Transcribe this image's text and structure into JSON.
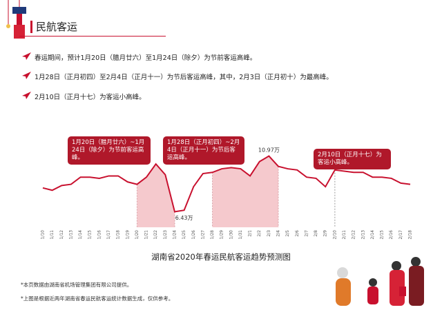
{
  "header": {
    "title": "民航客运"
  },
  "bullets": [
    "春运期间，预计1月20日（腊月廿六）至1月24日（除夕）为节前客运高峰。",
    "1月28日（正月初四）至2月4日（正月十一）为节后客运高峰，其中，2月3日（正月初十）为最高峰。",
    "2月10日（正月十七）为客运小高峰。"
  ],
  "callouts": {
    "pre_peak": "1月20日（腊月廿六）~1月24日（除夕）为节前客运高峰。",
    "post_peak": "1月28日（正月初四）~2月4日（正月十一）为节后客运高峰。",
    "small_peak": "2月10日（正月十七）为客运小高峰。"
  },
  "chart_data": {
    "type": "line",
    "title": "湖南省2020年春运民航客运趋势预测图",
    "x": [
      "1/10",
      "1/11",
      "1/12",
      "1/13",
      "1/14",
      "1/15",
      "1/16",
      "1/17",
      "1/18",
      "1/19",
      "1/20",
      "1/21",
      "1/22",
      "1/23",
      "1/24",
      "1/25",
      "1/26",
      "1/27",
      "1/28",
      "1/29",
      "1/30",
      "1/31",
      "2/1",
      "2/2",
      "2/3",
      "2/4",
      "2/5",
      "2/6",
      "2/7",
      "2/8",
      "2/9",
      "2/10",
      "2/11",
      "2/12",
      "2/13",
      "2/14",
      "2/15",
      "2/16",
      "2/17",
      "2/18"
    ],
    "values": [
      8.3,
      8.1,
      8.5,
      8.6,
      9.2,
      9.2,
      9.1,
      9.3,
      9.3,
      8.8,
      8.6,
      9.2,
      10.3,
      9.4,
      6.3,
      6.43,
      8.4,
      9.5,
      9.6,
      9.9,
      10.0,
      9.9,
      9.3,
      10.5,
      10.97,
      10.1,
      9.9,
      9.8,
      9.2,
      9.1,
      8.4,
      9.8,
      9.7,
      9.6,
      9.6,
      9.2,
      9.2,
      9.1,
      8.7,
      8.6
    ],
    "annotations": [
      {
        "x": "1/25",
        "label": "6.43万"
      },
      {
        "x": "2/3",
        "label": "10.97万"
      }
    ],
    "shaded_ranges": [
      [
        "1/20",
        "1/24"
      ],
      [
        "1/28",
        "2/4"
      ]
    ],
    "marker_line": "2/10",
    "ylim": [
      5,
      12.5
    ],
    "colors": {
      "line": "#c8102e",
      "shade": "#f5c9cd",
      "callout": "#b0182a"
    }
  },
  "footnotes": [
    "*本页数据由湖南省机场管理集团有限公司提供。",
    "*上图是根据近两年湖南省春运民航客运统计数据生成，仅供参考。"
  ]
}
